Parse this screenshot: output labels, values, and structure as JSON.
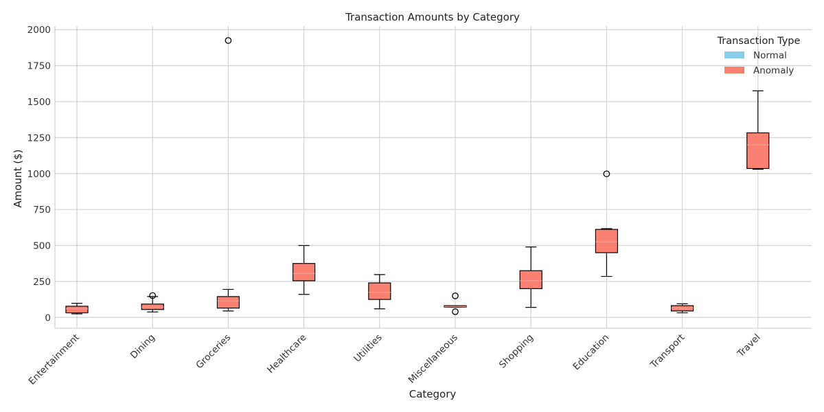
{
  "chart_data": {
    "type": "box",
    "title": "Transaction Amounts by Category",
    "xlabel": "Category",
    "ylabel": "Amount ($)",
    "ylim": [
      -75,
      2025
    ],
    "yticks": [
      0,
      250,
      500,
      750,
      1000,
      1250,
      1500,
      1750,
      2000
    ],
    "grid": true,
    "categories": [
      "Entertainment",
      "Dining",
      "Groceries",
      "Healthcare",
      "Utilities",
      "Miscellaneous",
      "Shopping",
      "Education",
      "Transport",
      "Travel"
    ],
    "legend": {
      "title": "Transaction Type",
      "placement": "top-right",
      "entries": [
        {
          "label": "Normal",
          "color": "#87ceeb"
        },
        {
          "label": "Anomaly",
          "color": "#fa8072"
        }
      ]
    },
    "series": [
      {
        "name": "Anomaly",
        "color": "#fa8072",
        "boxes": [
          {
            "category": "Entertainment",
            "whisker_low": 25,
            "q1": 32,
            "median": 60,
            "q3": 78,
            "whisker_high": 98,
            "outliers": []
          },
          {
            "category": "Dining",
            "whisker_low": 38,
            "q1": 55,
            "median": 72,
            "q3": 93,
            "whisker_high": 145,
            "outliers": [
              152
            ]
          },
          {
            "category": "Groceries",
            "whisker_low": 45,
            "q1": 65,
            "median": 115,
            "q3": 145,
            "whisker_high": 195,
            "outliers": [
              1925
            ]
          },
          {
            "category": "Healthcare",
            "whisker_low": 160,
            "q1": 255,
            "median": 305,
            "q3": 375,
            "whisker_high": 500,
            "outliers": []
          },
          {
            "category": "Utilities",
            "whisker_low": 60,
            "q1": 125,
            "median": 175,
            "q3": 240,
            "whisker_high": 298,
            "outliers": []
          },
          {
            "category": "Miscellaneous",
            "whisker_low": 72,
            "q1": 72,
            "median": 76,
            "q3": 82,
            "whisker_high": 82,
            "outliers": [
              150,
              40
            ]
          },
          {
            "category": "Shopping",
            "whisker_low": 70,
            "q1": 200,
            "median": 255,
            "q3": 325,
            "whisker_high": 490,
            "outliers": []
          },
          {
            "category": "Education",
            "whisker_low": 285,
            "q1": 450,
            "median": 525,
            "q3": 612,
            "whisker_high": 617,
            "outliers": [
              998
            ]
          },
          {
            "category": "Transport",
            "whisker_low": 32,
            "q1": 45,
            "median": 65,
            "q3": 82,
            "whisker_high": 95,
            "outliers": []
          },
          {
            "category": "Travel",
            "whisker_low": 1030,
            "q1": 1035,
            "median": 1200,
            "q3": 1283,
            "whisker_high": 1575,
            "outliers": []
          }
        ]
      }
    ]
  }
}
